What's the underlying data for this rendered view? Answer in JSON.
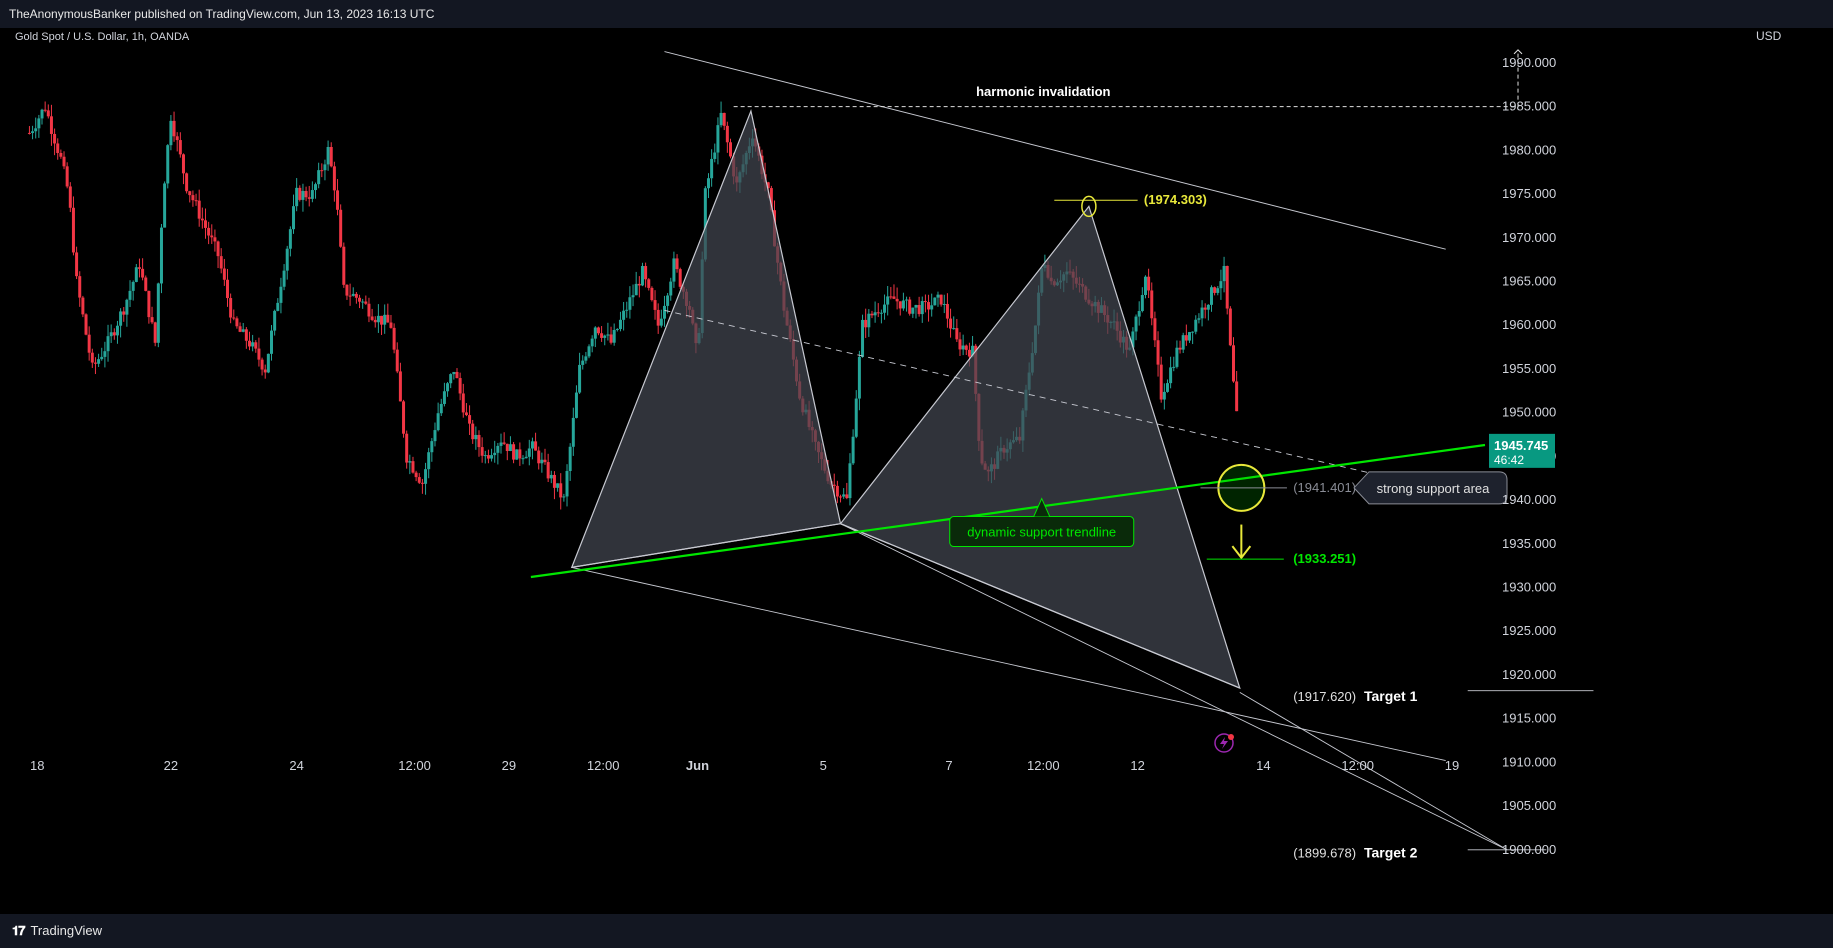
{
  "header": {
    "publisher_line": "TheAnonymousBanker published on TradingView.com, Jun 13, 2023 16:13 UTC"
  },
  "footer": {
    "brand": "TradingView"
  },
  "chart_data": {
    "type": "candlestick",
    "title": "Gold Spot / U.S. Dollar, 1h, OANDA",
    "y_axis_unit": "USD",
    "ylim": [
      1897,
      1994
    ],
    "y_ticks": [
      1900,
      1905,
      1910,
      1915,
      1920,
      1925,
      1930,
      1935,
      1940,
      1945,
      1950,
      1955,
      1960,
      1965,
      1970,
      1975,
      1980,
      1985,
      1990
    ],
    "y_tick_labels": [
      "1900.000",
      "1905.000",
      "1910.000",
      "1915.000",
      "1920.000",
      "1925.000",
      "1930.000",
      "1935.000",
      "1940.000",
      "1945.000",
      "1950.000",
      "1955.000",
      "1960.000",
      "1965.000",
      "1970.000",
      "1975.000",
      "1980.000",
      "1985.000",
      "1990.000"
    ],
    "x_ticks": [
      {
        "label": "18",
        "t": 0.5
      },
      {
        "label": "22",
        "t": 9
      },
      {
        "label": "24",
        "t": 17
      },
      {
        "label": "12:00",
        "t": 24.5
      },
      {
        "label": "29",
        "t": 30.5
      },
      {
        "label": "12:00",
        "t": 36.5
      },
      {
        "label": "Jun",
        "t": 42.5
      },
      {
        "label": "5",
        "t": 50.5
      },
      {
        "label": "7",
        "t": 58.5
      },
      {
        "label": "12:00",
        "t": 64.5
      },
      {
        "label": "12",
        "t": 70.5
      },
      {
        "label": "14",
        "t": 78.5
      },
      {
        "label": "12:00",
        "t": 84.5
      },
      {
        "label": "19",
        "t": 90.5
      }
    ],
    "price_path": [
      [
        0,
        1982
      ],
      [
        1,
        1985
      ],
      [
        2,
        1979
      ],
      [
        2.5,
        1975
      ],
      [
        3,
        1965
      ],
      [
        4,
        1955
      ],
      [
        5,
        1958
      ],
      [
        6,
        1962
      ],
      [
        7,
        1967
      ],
      [
        8,
        1958
      ],
      [
        8.5,
        1975
      ],
      [
        9,
        1984
      ],
      [
        10,
        1976
      ],
      [
        11,
        1972
      ],
      [
        12,
        1968
      ],
      [
        13,
        1960
      ],
      [
        14,
        1958
      ],
      [
        15,
        1955
      ],
      [
        16,
        1965
      ],
      [
        17,
        1975
      ],
      [
        18,
        1975
      ],
      [
        19,
        1980
      ],
      [
        19.5,
        1975
      ],
      [
        20,
        1964
      ],
      [
        21,
        1963
      ],
      [
        22,
        1961
      ],
      [
        23,
        1960
      ],
      [
        24,
        1945
      ],
      [
        25,
        1942
      ],
      [
        26,
        1950
      ],
      [
        27,
        1955
      ],
      [
        28,
        1948
      ],
      [
        29,
        1945
      ],
      [
        30,
        1947
      ],
      [
        31,
        1945
      ],
      [
        32,
        1946
      ],
      [
        33,
        1943
      ],
      [
        34,
        1940
      ],
      [
        35,
        1955
      ],
      [
        36,
        1960
      ],
      [
        37,
        1958
      ],
      [
        38,
        1962
      ],
      [
        39,
        1966
      ],
      [
        40,
        1960
      ],
      [
        41,
        1967
      ],
      [
        42,
        1962
      ],
      [
        42.5,
        1956
      ],
      [
        43,
        1975
      ],
      [
        44,
        1984
      ],
      [
        45,
        1976
      ],
      [
        46,
        1982
      ],
      [
        47,
        1975
      ],
      [
        48,
        1962
      ],
      [
        49,
        1952
      ],
      [
        50,
        1946
      ],
      [
        51,
        1942
      ],
      [
        52,
        1940
      ],
      [
        53,
        1960
      ],
      [
        54,
        1962
      ],
      [
        55,
        1963
      ],
      [
        56,
        1962
      ],
      [
        57,
        1962
      ],
      [
        58,
        1963
      ],
      [
        59,
        1958
      ],
      [
        60,
        1957
      ],
      [
        60.5,
        1945
      ],
      [
        61,
        1943
      ],
      [
        62,
        1946
      ],
      [
        63,
        1947
      ],
      [
        64,
        1960
      ],
      [
        64.5,
        1968
      ],
      [
        65,
        1965
      ],
      [
        66,
        1966
      ],
      [
        67,
        1964
      ],
      [
        68,
        1962
      ],
      [
        69,
        1960
      ],
      [
        70,
        1957
      ],
      [
        71,
        1966
      ],
      [
        72,
        1952
      ],
      [
        73,
        1957
      ],
      [
        74,
        1960
      ],
      [
        75,
        1963
      ],
      [
        76,
        1966
      ],
      [
        76.5,
        1955
      ],
      [
        77,
        1945.7
      ]
    ],
    "price_labels": {
      "top_point": "(1974.303)",
      "support_point": "(1941.401)",
      "target_stop": "(1933.251)",
      "target1_value": "(1917.620)",
      "target1_label": "Target 1",
      "target2_value": "(1899.678)",
      "target2_label": "Target 2"
    },
    "current_price": {
      "value": "1945.745",
      "countdown": "46:42",
      "price": 1945.745
    },
    "annotations": {
      "harmonic_invalidation": "harmonic invalidation",
      "dynamic_support": "dynamic support trendline",
      "strong_support": "strong support area"
    },
    "key_levels": {
      "invalidation_level": 1985,
      "top_point": 1974.303,
      "support_point": 1941.401,
      "target_stop": 1933.251,
      "target1": 1917.62,
      "target2": 1899.678
    },
    "pattern_points": {
      "X": [
        34.5,
        1932.3
      ],
      "A": [
        45.9,
        1984.5
      ],
      "B": [
        51.6,
        1937.3
      ],
      "C": [
        67.4,
        1973.6
      ],
      "D": [
        77.0,
        1918.5
      ]
    },
    "colors": {
      "bull": "#26a69a",
      "bear": "#f23645",
      "trend": "#00e600",
      "highlight": "#e8e83a",
      "pattern_fill": "#434651"
    }
  }
}
